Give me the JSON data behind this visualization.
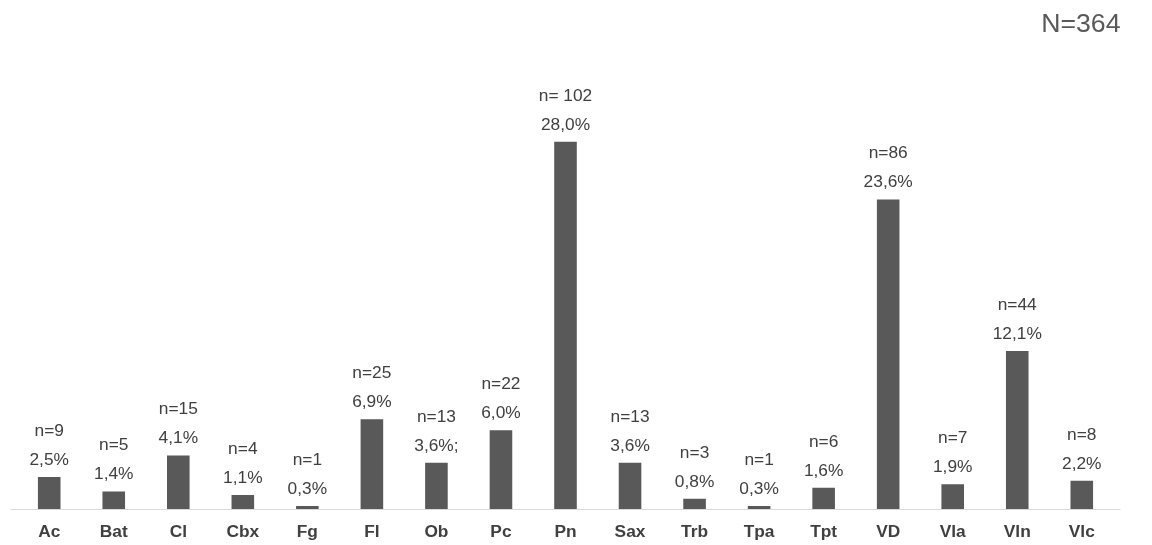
{
  "chart_data": {
    "type": "bar",
    "title": "N=364",
    "categories": [
      "Ac",
      "Bat",
      "Cl",
      "Cbx",
      "Fg",
      "Fl",
      "Ob",
      "Pc",
      "Pn",
      "Sax",
      "Trb",
      "Tpa",
      "Tpt",
      "VD",
      "Vla",
      "Vln",
      "Vlc"
    ],
    "values": [
      9,
      5,
      15,
      4,
      1,
      25,
      13,
      22,
      102,
      13,
      3,
      1,
      6,
      86,
      7,
      44,
      8
    ],
    "value_labels": [
      "n=9\n2,5%",
      "n=5\n1,4%",
      "n=15\n4,1%",
      "n=4\n1,1%",
      "n=1\n0,3%",
      "n=25\n6,9%",
      "n=13\n3,6%;",
      "n=22\n6,0%",
      "n= 102\n28,0%",
      "n=13\n3,6%",
      "n=3\n0,8%",
      "n=1\n0,3%",
      "n=6\n1,6%",
      "n=86\n23,6%",
      "n=7\n1,9%",
      "n=44\n12,1%",
      "n=8\n2,2%"
    ],
    "color": "#595959"
  }
}
